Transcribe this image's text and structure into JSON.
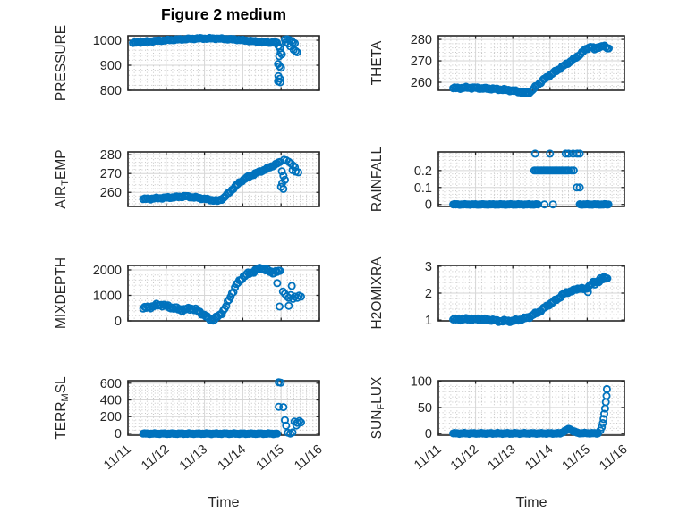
{
  "title": "Figure 2 medium",
  "axes": {
    "xlabel": "Time",
    "xlim": [
      0,
      5
    ],
    "x_tick_labels": [
      "11/11",
      "11/12",
      "11/13",
      "11/14",
      "11/15",
      "11/16"
    ],
    "x_minor_divisions_per_day": 6
  },
  "colors": {
    "marker": "#0072BD",
    "grid": "#d6d6d6",
    "minor_grid": "#c6c6c6",
    "box": "#262626",
    "text": "#262626"
  },
  "chart_data": [
    {
      "type": "scatter",
      "name": "pressure",
      "ylabel_parts": [
        {
          "t": "PRESSURE"
        }
      ],
      "ylim": [
        800,
        1018
      ],
      "yticks": [
        800,
        900,
        1000
      ],
      "ytick_labels": [
        "800",
        "900",
        "1000"
      ],
      "y_minor_step": 20,
      "segments": [
        {
          "x": [
            0.13,
            0.6,
            1.2,
            1.8,
            2.3,
            2.8,
            3.2,
            3.6,
            3.9
          ],
          "y": [
            989,
            996,
            1002,
            1007,
            1007,
            1003,
            997,
            992,
            990
          ],
          "step": 0.04,
          "jitter": 2.5
        }
      ],
      "points": [
        [
          3.93,
          977
        ],
        [
          3.97,
          968
        ],
        [
          3.99,
          951
        ],
        [
          4.02,
          944
        ],
        [
          3.95,
          936
        ],
        [
          3.92,
          905
        ],
        [
          3.96,
          896
        ],
        [
          4.0,
          890
        ],
        [
          3.93,
          856
        ],
        [
          3.97,
          846
        ],
        [
          3.92,
          836
        ],
        [
          3.98,
          832
        ],
        [
          4.1,
          1003
        ],
        [
          4.16,
          1004
        ],
        [
          4.22,
          1001
        ],
        [
          4.28,
          997
        ],
        [
          4.12,
          991
        ],
        [
          4.19,
          987
        ],
        [
          4.31,
          991
        ],
        [
          4.36,
          988
        ],
        [
          4.24,
          976
        ],
        [
          4.33,
          962
        ],
        [
          4.38,
          957
        ],
        [
          4.42,
          952
        ]
      ]
    },
    {
      "type": "scatter",
      "name": "theta",
      "ylabel_parts": [
        {
          "t": "THETA"
        }
      ],
      "ylim": [
        256.25,
        281.7
      ],
      "yticks": [
        260,
        270,
        280
      ],
      "ytick_labels": [
        "260",
        "270",
        "280"
      ],
      "y_minor_step": 2,
      "segments": [
        {
          "x": [
            0.4,
            0.8,
            1.4,
            1.9,
            2.2,
            2.35,
            2.5,
            2.65,
            2.85,
            3.1,
            3.4,
            3.7,
            3.95,
            4.1,
            4.2,
            4.3,
            4.45,
            4.58
          ],
          "y": [
            257.2,
            257.5,
            257.0,
            256.3,
            255.5,
            254.9,
            255.8,
            258.5,
            261.5,
            264.5,
            268.0,
            271.5,
            275.2,
            276.8,
            275.3,
            276.5,
            276.8,
            275.8
          ],
          "step": 0.038,
          "jitter": 0.5
        }
      ],
      "points": []
    },
    {
      "type": "scatter",
      "name": "air-temp",
      "ylabel_parts": [
        {
          "t": "AIR"
        },
        {
          "t": "T",
          "sub": true
        },
        {
          "t": "EMP"
        }
      ],
      "ylim": [
        252.5,
        281.5
      ],
      "yticks": [
        260,
        270,
        280
      ],
      "ytick_labels": [
        "260",
        "270",
        "280"
      ],
      "y_minor_step": 2,
      "segments": [
        {
          "x": [
            0.4,
            0.8,
            1.2,
            1.5,
            1.8,
            2.1,
            2.35,
            2.5,
            2.7,
            2.9,
            3.1,
            3.35,
            3.6,
            3.85,
            4.0
          ],
          "y": [
            256.4,
            256.9,
            257.4,
            257.9,
            257.2,
            256.2,
            255.4,
            257.0,
            261.0,
            265.0,
            267.8,
            270.2,
            272.3,
            274.8,
            276.3
          ],
          "step": 0.038,
          "jitter": 0.45
        }
      ],
      "points": [
        [
          4.08,
          277.3
        ],
        [
          4.14,
          277.0
        ],
        [
          4.2,
          276.2
        ],
        [
          4.26,
          275.3
        ],
        [
          4.32,
          274.2
        ],
        [
          4.36,
          273.3
        ],
        [
          4.3,
          271.8
        ],
        [
          4.38,
          271.0
        ],
        [
          4.45,
          270.6
        ],
        [
          4.02,
          271.2
        ],
        [
          4.06,
          268.8
        ],
        [
          4.1,
          266.6
        ],
        [
          4.03,
          264.9
        ],
        [
          4.0,
          262.9
        ],
        [
          4.06,
          261.8
        ]
      ]
    },
    {
      "type": "scatter",
      "name": "rainfall",
      "ylabel_parts": [
        {
          "t": "RAINFALL"
        }
      ],
      "ylim": [
        -0.012,
        0.31
      ],
      "yticks": [
        0,
        0.1,
        0.2
      ],
      "ytick_labels": [
        "0",
        "0.1",
        "0.2"
      ],
      "y_minor_step": 0.02,
      "segments": [
        {
          "x": [
            0.4,
            2.7
          ],
          "y": [
            0,
            0
          ],
          "step": 0.035,
          "jitter": 0.002
        },
        {
          "x": [
            3.8,
            4.6
          ],
          "y": [
            0,
            0
          ],
          "step": 0.035,
          "jitter": 0.002
        },
        {
          "x": [
            2.58,
            3.52
          ],
          "y": [
            0.2,
            0.2
          ],
          "step": 0.04,
          "jitter": 0
        }
      ],
      "points": [
        [
          2.85,
          0
        ],
        [
          3.08,
          0
        ],
        [
          3.58,
          0.2
        ],
        [
          3.64,
          0.2
        ],
        [
          3.72,
          0.1
        ],
        [
          3.8,
          0.1
        ],
        [
          2.6,
          0.3
        ],
        [
          3.0,
          0.3
        ],
        [
          3.42,
          0.3
        ],
        [
          3.5,
          0.3
        ],
        [
          3.62,
          0.3
        ],
        [
          3.73,
          0.3
        ],
        [
          3.8,
          0.3
        ]
      ]
    },
    {
      "type": "scatter",
      "name": "mixdepth",
      "ylabel_parts": [
        {
          "t": "MIXDEPTH"
        }
      ],
      "ylim": [
        0,
        2175
      ],
      "yticks": [
        0,
        1000,
        2000
      ],
      "ytick_labels": [
        "0",
        "1000",
        "2000"
      ],
      "y_minor_step": 200,
      "segments": [
        {
          "x": [
            0.4,
            0.55,
            0.85,
            1.15,
            1.45,
            1.65,
            1.9,
            2.1,
            2.25,
            2.4,
            2.55,
            2.7,
            2.85,
            3.0,
            3.15,
            3.3,
            3.5,
            3.65,
            3.8,
            4.0
          ],
          "y": [
            480,
            540,
            640,
            520,
            420,
            500,
            330,
            90,
            40,
            230,
            520,
            1030,
            1450,
            1720,
            1850,
            1950,
            2080,
            1960,
            1900,
            1940
          ],
          "step": 0.038,
          "jitter": 70
        }
      ],
      "points": [
        [
          3.9,
          1480
        ],
        [
          4.28,
          1370
        ],
        [
          4.05,
          1150
        ],
        [
          4.1,
          1060
        ],
        [
          4.15,
          960
        ],
        [
          4.2,
          900
        ],
        [
          4.25,
          1010
        ],
        [
          4.31,
          860
        ],
        [
          4.36,
          950
        ],
        [
          4.42,
          900
        ],
        [
          4.47,
          990
        ],
        [
          4.52,
          950
        ],
        [
          3.96,
          560
        ],
        [
          4.2,
          590
        ]
      ]
    },
    {
      "type": "scatter",
      "name": "h2omixra",
      "ylabel_parts": [
        {
          "t": "H2OMIXRA"
        }
      ],
      "ylim": [
        0.97,
        3.03
      ],
      "yticks": [
        1,
        2,
        3
      ],
      "ytick_labels": [
        "1",
        "2",
        "3"
      ],
      "y_minor_step": 0.2,
      "segments": [
        {
          "x": [
            0.4,
            0.8,
            1.2,
            1.45,
            1.6,
            1.8,
            2.0,
            2.1,
            2.25,
            2.45,
            2.7,
            2.95,
            3.2,
            3.35,
            3.5,
            3.65,
            3.8,
            3.95,
            4.1,
            4.25,
            4.4,
            4.55
          ],
          "y": [
            1.02,
            1.03,
            1.02,
            1.0,
            0.96,
            0.97,
            0.96,
            1.0,
            1.03,
            1.12,
            1.3,
            1.55,
            1.78,
            1.95,
            2.05,
            2.1,
            2.2,
            2.12,
            2.35,
            2.42,
            2.5,
            2.58
          ],
          "step": 0.038,
          "jitter": 0.045
        }
      ],
      "points": [
        [
          4.02,
          2.04
        ],
        [
          4.2,
          2.32
        ],
        [
          4.35,
          2.55
        ],
        [
          4.45,
          2.6
        ]
      ]
    },
    {
      "type": "scatter",
      "name": "terr-msl",
      "ylabel_parts": [
        {
          "t": "TERR"
        },
        {
          "t": "M",
          "sub": true
        },
        {
          "t": "SL"
        }
      ],
      "ylim": [
        -22,
        630
      ],
      "yticks": [
        0,
        200,
        400,
        600
      ],
      "ytick_labels": [
        "0",
        "200",
        "400",
        "600"
      ],
      "y_minor_step": 40,
      "segments": [
        {
          "x": [
            0.4,
            3.9
          ],
          "y": [
            -4,
            -4
          ],
          "step": 0.033,
          "jitter": 6
        }
      ],
      "points": [
        [
          3.94,
          612
        ],
        [
          3.99,
          607
        ],
        [
          3.94,
          318
        ],
        [
          4.06,
          314
        ],
        [
          4.1,
          158
        ],
        [
          4.13,
          92
        ],
        [
          4.35,
          140
        ],
        [
          4.42,
          127
        ],
        [
          4.48,
          148
        ],
        [
          4.52,
          131
        ],
        [
          4.4,
          95
        ],
        [
          4.18,
          8
        ],
        [
          4.24,
          -3
        ],
        [
          4.3,
          11
        ]
      ]
    },
    {
      "type": "scatter",
      "name": "sun-flux",
      "ylabel_parts": [
        {
          "t": "SUN"
        },
        {
          "t": "F",
          "sub": true
        },
        {
          "t": "LUX"
        }
      ],
      "ylim": [
        -3,
        101
      ],
      "yticks": [
        0,
        50,
        100
      ],
      "ytick_labels": [
        "0",
        "50",
        "100"
      ],
      "y_minor_step": 10,
      "segments": [
        {
          "x": [
            0.4,
            3.3
          ],
          "y": [
            0.4,
            0.4
          ],
          "step": 0.033,
          "jitter": 1.1
        },
        {
          "x": [
            3.3,
            3.42,
            3.52,
            3.62,
            3.75,
            4.3
          ],
          "y": [
            1,
            6,
            9,
            5,
            1,
            0.5
          ],
          "step": 0.033,
          "jitter": 0.9
        }
      ],
      "points": [
        [
          4.35,
          6
        ],
        [
          4.39,
          12
        ],
        [
          4.42,
          20
        ],
        [
          4.44,
          28
        ],
        [
          4.46,
          38
        ],
        [
          4.48,
          48
        ],
        [
          4.5,
          60
        ],
        [
          4.52,
          72
        ],
        [
          4.53,
          85
        ]
      ]
    }
  ]
}
